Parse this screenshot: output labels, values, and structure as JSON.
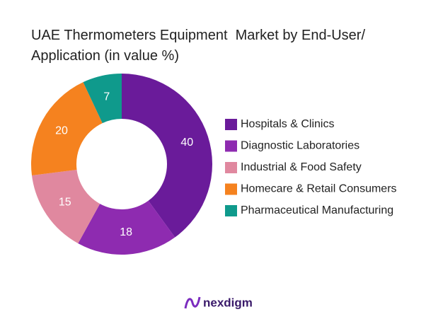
{
  "chart_data": {
    "type": "donut",
    "title": "UAE Thermometers Equipment  Market by End-User/ Application (in value %)",
    "categories": [
      "Hospitals & Clinics",
      "Diagnostic Laboratories",
      "Industrial & Food Safety",
      "Homecare & Retail Consumers",
      "Pharmaceutical Manufacturing"
    ],
    "values": [
      40,
      18,
      15,
      20,
      7
    ],
    "colors": [
      "#6a1b9a",
      "#8e2bb0",
      "#e0889f",
      "#f5821f",
      "#0f9a8c"
    ],
    "brand": "nexdigm"
  }
}
